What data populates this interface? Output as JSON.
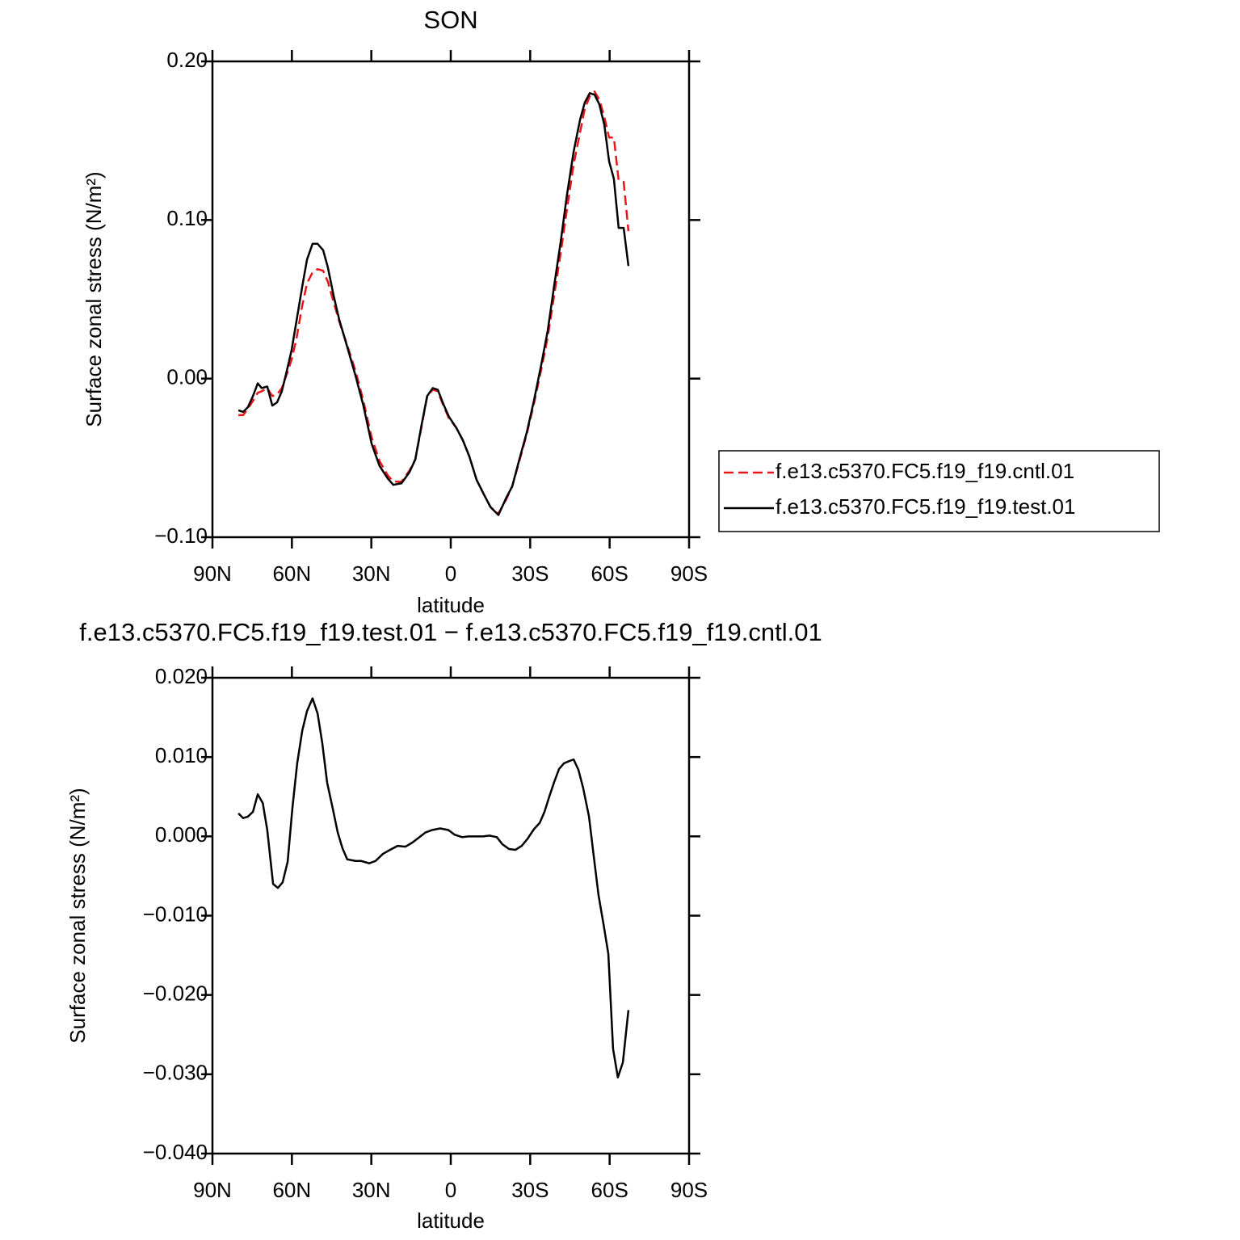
{
  "chart_data": [
    {
      "type": "line",
      "title": "SON",
      "xlabel": "latitude",
      "ylabel": "Surface zonal stress (N/m²)",
      "x": [
        80.2,
        78.4,
        76.6,
        74.7,
        72.9,
        71.4,
        69.3,
        67.4,
        65.6,
        63.8,
        61.9,
        60.1,
        58.3,
        56.1,
        54.3,
        52.2,
        50.3,
        48.2,
        46.4,
        44.2,
        42.1,
        39.1,
        36.0,
        33.0,
        29.9,
        26.9,
        23.8,
        21.7,
        18.6,
        15.6,
        13.4,
        11.0,
        8.9,
        6.8,
        4.9,
        2.8,
        0.7,
        -2.1,
        -4.6,
        -7.0,
        -9.8,
        -12.5,
        -15.0,
        -18.0,
        -21.0,
        -23.2,
        -25.9,
        -28.7,
        -31.4,
        -34.2,
        -36.6,
        -39.0,
        -41.5,
        -43.9,
        -46.4,
        -48.8,
        -50.6,
        -52.5,
        -54.3,
        -56.1,
        -58.0,
        -59.8,
        -61.6,
        -63.4,
        -65.3,
        -67.1
      ],
      "series": [
        {
          "name": "f.e13.c5370.FC5.f19_f19.cntl.01",
          "color": "#e8161b",
          "dash": true,
          "values": [
            -0.023,
            -0.023,
            -0.019,
            -0.014,
            -0.009,
            -0.008,
            -0.006,
            -0.011,
            -0.01,
            -0.006,
            0.003,
            0.012,
            0.025,
            0.046,
            0.06,
            0.067,
            0.069,
            0.068,
            0.061,
            0.048,
            0.036,
            0.021,
            0.005,
            -0.014,
            -0.037,
            -0.052,
            -0.061,
            -0.065,
            -0.065,
            -0.058,
            -0.051,
            -0.03,
            -0.011,
            -0.007,
            -0.008,
            -0.017,
            -0.025,
            -0.031,
            -0.039,
            -0.049,
            -0.064,
            -0.073,
            -0.081,
            -0.085,
            -0.076,
            -0.068,
            -0.052,
            -0.035,
            -0.016,
            0.006,
            0.026,
            0.052,
            0.079,
            0.107,
            0.135,
            0.155,
            0.17,
            0.178,
            0.181,
            0.176,
            0.165,
            0.152,
            0.152,
            0.125,
            0.124,
            0.093
          ]
        },
        {
          "name": "f.e13.c5370.FC5.f19_f19.test.01",
          "color": "#000000",
          "dash": false,
          "values": [
            -0.02,
            -0.021,
            -0.018,
            -0.011,
            -0.003,
            -0.006,
            -0.005,
            -0.017,
            -0.015,
            -0.008,
            0.005,
            0.018,
            0.036,
            0.058,
            0.075,
            0.085,
            0.085,
            0.081,
            0.07,
            0.052,
            0.037,
            0.02,
            0.002,
            -0.017,
            -0.041,
            -0.055,
            -0.063,
            -0.067,
            -0.066,
            -0.059,
            -0.051,
            -0.029,
            -0.011,
            -0.006,
            -0.007,
            -0.016,
            -0.024,
            -0.031,
            -0.039,
            -0.049,
            -0.064,
            -0.073,
            -0.081,
            -0.086,
            -0.075,
            -0.068,
            -0.051,
            -0.034,
            -0.014,
            0.009,
            0.03,
            0.058,
            0.086,
            0.116,
            0.143,
            0.163,
            0.174,
            0.18,
            0.179,
            0.173,
            0.16,
            0.137,
            0.126,
            0.095,
            0.095,
            0.071
          ]
        }
      ],
      "xlim": [
        90,
        -90
      ],
      "xticks": [
        {
          "value": 90,
          "label": "90N"
        },
        {
          "value": 60,
          "label": "60N"
        },
        {
          "value": 30,
          "label": "30N"
        },
        0,
        {
          "value": -30,
          "label": "30S"
        },
        {
          "value": -60,
          "label": "60S"
        },
        {
          "value": -90,
          "label": "90S"
        }
      ],
      "ylim": [
        -0.1,
        0.2
      ],
      "yticks": [
        {
          "value": 0.2,
          "label": "0.20"
        },
        {
          "value": 0.1,
          "label": "0.10"
        },
        {
          "value": 0.0,
          "label": "0.00"
        },
        {
          "value": -0.1,
          "label": "−0.10"
        }
      ],
      "legend": "right"
    },
    {
      "type": "line",
      "title": "f.e13.c5370.FC5.f19_f19.test.01 − f.e13.c5370.FC5.f19_f19.cntl.01",
      "xlabel": "latitude",
      "ylabel": "Surface zonal stress (N/m²)",
      "x": [
        80.2,
        78.4,
        76.6,
        74.7,
        72.9,
        71.0,
        69.3,
        67.1,
        65.3,
        63.5,
        61.6,
        59.8,
        58.0,
        56.1,
        54.3,
        52.2,
        50.3,
        48.5,
        46.7,
        44.5,
        42.7,
        40.9,
        39.1,
        36.0,
        33.9,
        30.8,
        28.4,
        25.6,
        22.9,
        20.1,
        17.1,
        14.6,
        12.2,
        9.5,
        7.0,
        4.0,
        0.9,
        -1.5,
        -4.3,
        -6.7,
        -9.8,
        -12.2,
        -14.6,
        -17.4,
        -19.5,
        -22.0,
        -24.4,
        -26.8,
        -29.0,
        -31.4,
        -33.6,
        -35.4,
        -37.2,
        -39.0,
        -40.9,
        -42.7,
        -44.8,
        -46.4,
        -48.2,
        -50.0,
        -52.2,
        -54.0,
        -55.8,
        -57.7,
        -59.5,
        -61.3,
        -63.1,
        -65.0,
        -67.1
      ],
      "series": [
        {
          "color": "#000000",
          "dash": false,
          "values": [
            0.0029,
            0.0023,
            0.0025,
            0.0031,
            0.0053,
            0.0042,
            0.0008,
            -0.006,
            -0.0065,
            -0.0058,
            -0.0032,
            0.0036,
            0.0092,
            0.0133,
            0.0158,
            0.0174,
            0.0155,
            0.0117,
            0.0068,
            0.0034,
            0.0005,
            -0.0015,
            -0.0029,
            -0.0031,
            -0.0031,
            -0.0034,
            -0.0031,
            -0.0022,
            -0.0017,
            -0.0012,
            -0.0013,
            -0.0008,
            -0.0002,
            0.0005,
            0.0008,
            0.001,
            0.0008,
            0.0002,
            -0.0001,
            0.0,
            0.0,
            0.0,
            0.0001,
            -0.0001,
            -0.001,
            -0.0016,
            -0.0017,
            -0.0012,
            -0.0003,
            0.0009,
            0.0017,
            0.0031,
            0.005,
            0.0068,
            0.0085,
            0.0092,
            0.0095,
            0.0097,
            0.0084,
            0.0061,
            0.0025,
            -0.0025,
            -0.0074,
            -0.0111,
            -0.0148,
            -0.0268,
            -0.0304,
            -0.0285,
            -0.0219
          ]
        }
      ],
      "xlim": [
        90,
        -90
      ],
      "xticks": [
        {
          "value": 90,
          "label": "90N"
        },
        {
          "value": 60,
          "label": "60N"
        },
        {
          "value": 30,
          "label": "30N"
        },
        0,
        {
          "value": -30,
          "label": "30S"
        },
        {
          "value": -60,
          "label": "60S"
        },
        {
          "value": -90,
          "label": "90S"
        }
      ],
      "ylim": [
        -0.04,
        0.02
      ],
      "yticks": [
        {
          "value": 0.02,
          "label": "0.020"
        },
        {
          "value": 0.01,
          "label": "0.010"
        },
        {
          "value": 0.0,
          "label": "0.000"
        },
        {
          "value": -0.01,
          "label": "−0.010"
        },
        {
          "value": -0.02,
          "label": "−0.020"
        },
        {
          "value": -0.03,
          "label": "−0.030"
        },
        {
          "value": -0.04,
          "label": "−0.040"
        }
      ]
    }
  ]
}
